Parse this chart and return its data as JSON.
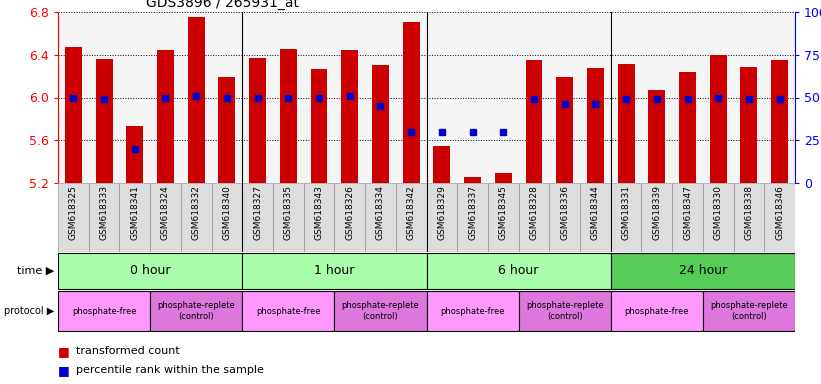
{
  "title": "GDS3896 / 265931_at",
  "samples": [
    "GSM618325",
    "GSM618333",
    "GSM618341",
    "GSM618324",
    "GSM618332",
    "GSM618340",
    "GSM618327",
    "GSM618335",
    "GSM618343",
    "GSM618326",
    "GSM618334",
    "GSM618342",
    "GSM618329",
    "GSM618337",
    "GSM618345",
    "GSM618328",
    "GSM618336",
    "GSM618344",
    "GSM618331",
    "GSM618339",
    "GSM618347",
    "GSM618330",
    "GSM618338",
    "GSM618346"
  ],
  "transformed_count": [
    6.47,
    6.36,
    5.73,
    6.44,
    6.75,
    6.19,
    6.37,
    6.45,
    6.27,
    6.44,
    6.3,
    6.71,
    5.55,
    5.26,
    5.29,
    6.35,
    6.19,
    6.28,
    6.31,
    6.07,
    6.24,
    6.4,
    6.29,
    6.35
  ],
  "percentile_rank": [
    50,
    49,
    20,
    50,
    51,
    50,
    50,
    50,
    50,
    51,
    45,
    30,
    30,
    30,
    30,
    49,
    46,
    46,
    49,
    49,
    49,
    50,
    49,
    49
  ],
  "ylim": [
    5.2,
    6.8
  ],
  "y2lim": [
    0,
    100
  ],
  "yticks": [
    5.2,
    5.6,
    6.0,
    6.4,
    6.8
  ],
  "y2ticks": [
    0,
    25,
    50,
    75,
    100
  ],
  "y2ticklabels": [
    "0",
    "25",
    "50",
    "75",
    "100%"
  ],
  "bar_color": "#CC0000",
  "dot_color": "#0000CC",
  "time_groups": [
    {
      "label": "0 hour",
      "start": 0,
      "end": 6,
      "color": "#AAFFAA"
    },
    {
      "label": "1 hour",
      "start": 6,
      "end": 12,
      "color": "#AAFFAA"
    },
    {
      "label": "6 hour",
      "start": 12,
      "end": 18,
      "color": "#AAFFAA"
    },
    {
      "label": "24 hour",
      "start": 18,
      "end": 24,
      "color": "#55CC55"
    }
  ],
  "protocol_groups": [
    {
      "label": "phosphate-free",
      "start": 0,
      "end": 3,
      "color": "#FF99FF"
    },
    {
      "label": "phosphate-replete\n(control)",
      "start": 3,
      "end": 6,
      "color": "#DD77DD"
    },
    {
      "label": "phosphate-free",
      "start": 6,
      "end": 9,
      "color": "#FF99FF"
    },
    {
      "label": "phosphate-replete\n(control)",
      "start": 9,
      "end": 12,
      "color": "#DD77DD"
    },
    {
      "label": "phosphate-free",
      "start": 12,
      "end": 15,
      "color": "#FF99FF"
    },
    {
      "label": "phosphate-replete\n(control)",
      "start": 15,
      "end": 18,
      "color": "#DD77DD"
    },
    {
      "label": "phosphate-free",
      "start": 18,
      "end": 21,
      "color": "#FF99FF"
    },
    {
      "label": "phosphate-replete\n(control)",
      "start": 21,
      "end": 24,
      "color": "#DD77DD"
    }
  ],
  "separators": [
    6,
    12,
    18
  ],
  "legend_items": [
    {
      "label": "transformed count",
      "color": "#CC0000"
    },
    {
      "label": "percentile rank within the sample",
      "color": "#0000CC"
    }
  ]
}
